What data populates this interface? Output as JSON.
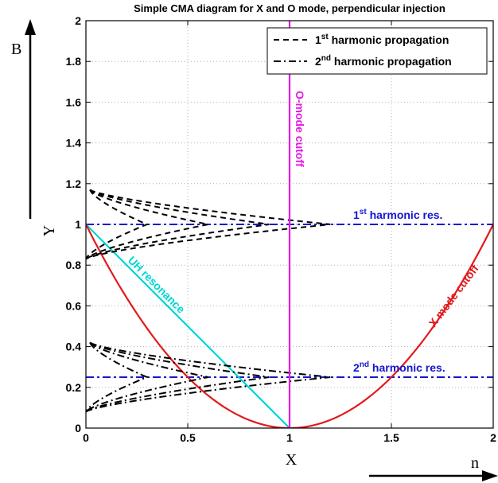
{
  "chart_data": {
    "type": "line",
    "title": "Simple CMA diagram for X and O mode, perpendicular injection",
    "xlabel": "X",
    "ylabel": "Y",
    "side_labels": {
      "up_arrow": "B",
      "right_arrow": "n"
    },
    "xlim": [
      0,
      2
    ],
    "ylim": [
      0,
      2
    ],
    "xticks": [
      "0",
      "0.5",
      "1",
      "1.5",
      "2"
    ],
    "yticks": [
      "0",
      "0.2",
      "0.4",
      "0.6",
      "0.8",
      "1",
      "1.2",
      "1.4",
      "1.6",
      "1.8",
      "2"
    ],
    "grid": true,
    "legend": {
      "placement": "top-right",
      "entries": [
        {
          "pre": "1",
          "sup": "st",
          "post": " harmonic propagation",
          "style": "dashed"
        },
        {
          "pre": "2",
          "sup": "nd",
          "post": " harmonic propagation",
          "style": "dashdot"
        }
      ]
    },
    "colors": {
      "x_cutoff": "#e31a1c",
      "o_cutoff": "#e619e6",
      "uh": "#00d5d5",
      "res": "#1515d0",
      "prop": "#000000"
    },
    "curves": {
      "x_mode_cutoff": {
        "label": "X mode cutoff",
        "formula": "Y = (1 - X)^2",
        "x": [
          0,
          0.25,
          0.5,
          0.75,
          1,
          1.25,
          1.5,
          1.75,
          2
        ],
        "y": [
          1,
          0.5625,
          0.25,
          0.0625,
          0,
          0.0625,
          0.25,
          0.5625,
          1
        ]
      },
      "o_mode_cutoff": {
        "label": "O-mode cutoff",
        "x": [
          1,
          1
        ],
        "y": [
          0,
          2
        ]
      },
      "uh_resonance": {
        "label": "UH resonance",
        "x": [
          0,
          1
        ],
        "y": [
          1,
          0
        ]
      },
      "first_harmonic_res": {
        "pre": "1",
        "sup": "st",
        "post": " harmonic res.",
        "x": [
          0,
          2
        ],
        "y": [
          1,
          1
        ]
      },
      "second_harmonic_res": {
        "pre": "2",
        "sup": "nd",
        "post": " harmonic res.",
        "x": [
          0,
          2
        ],
        "y": [
          0.25,
          0.25
        ]
      }
    },
    "first_harmonic_propagation": {
      "y_min": 0.83,
      "y_res": 1.0,
      "y_max": 1.17,
      "x_peaks": [
        0.3,
        0.6,
        0.9,
        1.2
      ],
      "x_start_low": 0.0,
      "x_start_high": 0.02
    },
    "second_harmonic_propagation": {
      "y_min": 0.08,
      "y_res": 0.25,
      "y_max": 0.42,
      "x_peaks": [
        0.3,
        0.6,
        0.9,
        1.2
      ],
      "x_start_low": 0.0,
      "x_start_high": 0.02
    }
  }
}
